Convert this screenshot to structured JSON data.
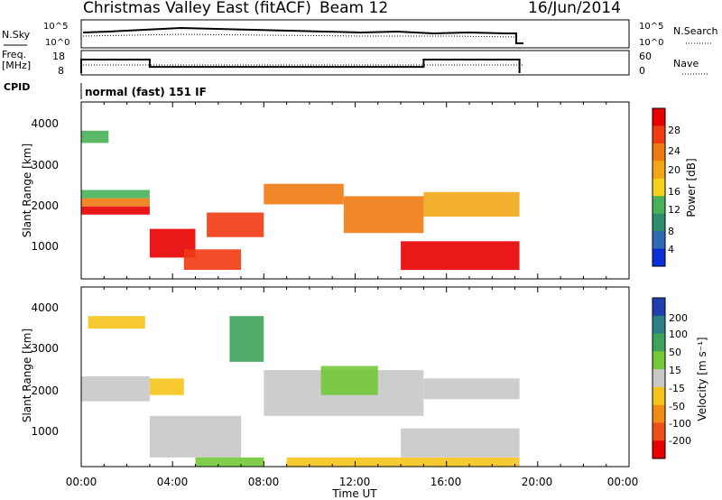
{
  "header": {
    "title": "Christmas Valley East (fitACF)",
    "beam": "Beam 12",
    "date": "16/Jun/2014"
  },
  "nsky_panel": {
    "label": "N.Sky",
    "left_ticks": [
      "10^5",
      "10^0"
    ],
    "right_ticks": [
      "10^5",
      "10^0"
    ],
    "legend_label": "N.Search"
  },
  "freq_panel": {
    "label_line1": "Freq.",
    "label_line2": "[MHz]",
    "left_ticks": [
      "18",
      "8"
    ],
    "right_ticks": [
      "60",
      "0"
    ],
    "legend_label": "Nave"
  },
  "cpid": {
    "label": "CPID",
    "text": "normal (fast) 151 IF"
  },
  "x_axis": {
    "label": "Time UT",
    "ticks": [
      "00:00",
      "04:00",
      "08:00",
      "12:00",
      "16:00",
      "20:00",
      "00:00"
    ]
  },
  "power_panel": {
    "ylabel": "Slant Range [km]",
    "yticks": [
      "1000",
      "2000",
      "3000",
      "4000"
    ],
    "colorbar_label": "Power [dB]",
    "colorbar_ticks": [
      "4",
      "8",
      "12",
      "16",
      "20",
      "24",
      "28"
    ],
    "colors": [
      "#0b2fd6",
      "#2f6bb5",
      "#2e8b6e",
      "#49b259",
      "#f5d21c",
      "#f2a617",
      "#f07a12",
      "#ef3a12",
      "#e80000"
    ]
  },
  "velocity_panel": {
    "ylabel": "Slant Range [km]",
    "yticks": [
      "1000",
      "2000",
      "3000",
      "4000"
    ],
    "colorbar_label": "Velocity [m s⁻¹]",
    "colorbar_ticks": [
      "200",
      "100",
      "50",
      "15",
      "-15",
      "-50",
      "-100",
      "-200"
    ],
    "colors": [
      "#1f3fb0",
      "#2b7f86",
      "#3ea35b",
      "#73c93a",
      "#c8c8c8",
      "#f5c41a",
      "#f08b18",
      "#ef4f16",
      "#e80000"
    ]
  },
  "chart_data": {
    "type": "heatmap",
    "time_range_hours": [
      0,
      24
    ],
    "slant_range_km": [
      180,
      4500
    ],
    "data_end_hour": 19.2,
    "power_bands": [
      {
        "t0": 0.0,
        "t1": 3.0,
        "r0": 1750,
        "r1": 1950,
        "level": 8
      },
      {
        "t0": 0.0,
        "t1": 3.0,
        "r0": 1950,
        "r1": 2150,
        "level": 6
      },
      {
        "t0": 0.0,
        "t1": 3.0,
        "r0": 2150,
        "r1": 2350,
        "level": 3
      },
      {
        "t0": 0.0,
        "t1": 1.2,
        "r0": 3500,
        "r1": 3800,
        "level": 3
      },
      {
        "t0": 3.0,
        "t1": 5.0,
        "r0": 700,
        "r1": 1400,
        "level": 8
      },
      {
        "t0": 4.5,
        "t1": 7.0,
        "r0": 400,
        "r1": 900,
        "level": 7
      },
      {
        "t0": 5.5,
        "t1": 8.0,
        "r0": 1200,
        "r1": 1800,
        "level": 7
      },
      {
        "t0": 8.0,
        "t1": 11.5,
        "r0": 2000,
        "r1": 2500,
        "level": 6
      },
      {
        "t0": 11.5,
        "t1": 15.0,
        "r0": 1300,
        "r1": 2200,
        "level": 6
      },
      {
        "t0": 15.0,
        "t1": 19.2,
        "r0": 1700,
        "r1": 2300,
        "level": 5
      },
      {
        "t0": 14.0,
        "t1": 19.2,
        "r0": 400,
        "r1": 1100,
        "level": 8
      }
    ],
    "velocity_bands": [
      {
        "t0": 0.0,
        "t1": 3.0,
        "r0": 1750,
        "r1": 2350,
        "level": 4
      },
      {
        "t0": 0.3,
        "t1": 2.8,
        "r0": 3500,
        "r1": 3800,
        "level": 5
      },
      {
        "t0": 3.0,
        "t1": 7.0,
        "r0": 400,
        "r1": 1400,
        "level": 4
      },
      {
        "t0": 3.0,
        "t1": 4.5,
        "r0": 1900,
        "r1": 2300,
        "level": 5
      },
      {
        "t0": 6.5,
        "t1": 8.0,
        "r0": 2700,
        "r1": 3800,
        "level": 2
      },
      {
        "t0": 8.0,
        "t1": 15.0,
        "r0": 1400,
        "r1": 2500,
        "level": 4
      },
      {
        "t0": 10.5,
        "t1": 13.0,
        "r0": 1900,
        "r1": 2600,
        "level": 3
      },
      {
        "t0": 15.0,
        "t1": 19.2,
        "r0": 1800,
        "r1": 2300,
        "level": 4
      },
      {
        "t0": 14.0,
        "t1": 19.2,
        "r0": 400,
        "r1": 1100,
        "level": 4
      },
      {
        "t0": 5.0,
        "t1": 8.0,
        "r0": 180,
        "r1": 400,
        "level": 3
      },
      {
        "t0": 9.0,
        "t1": 19.2,
        "r0": 180,
        "r1": 400,
        "level": 5
      }
    ],
    "freq_mhz": [
      {
        "t0": 0.0,
        "t1": 3.0,
        "value": 14.5
      },
      {
        "t0": 3.0,
        "t1": 15.0,
        "value": 11.0
      },
      {
        "t0": 15.0,
        "t1": 19.2,
        "value": 14.5
      }
    ]
  }
}
